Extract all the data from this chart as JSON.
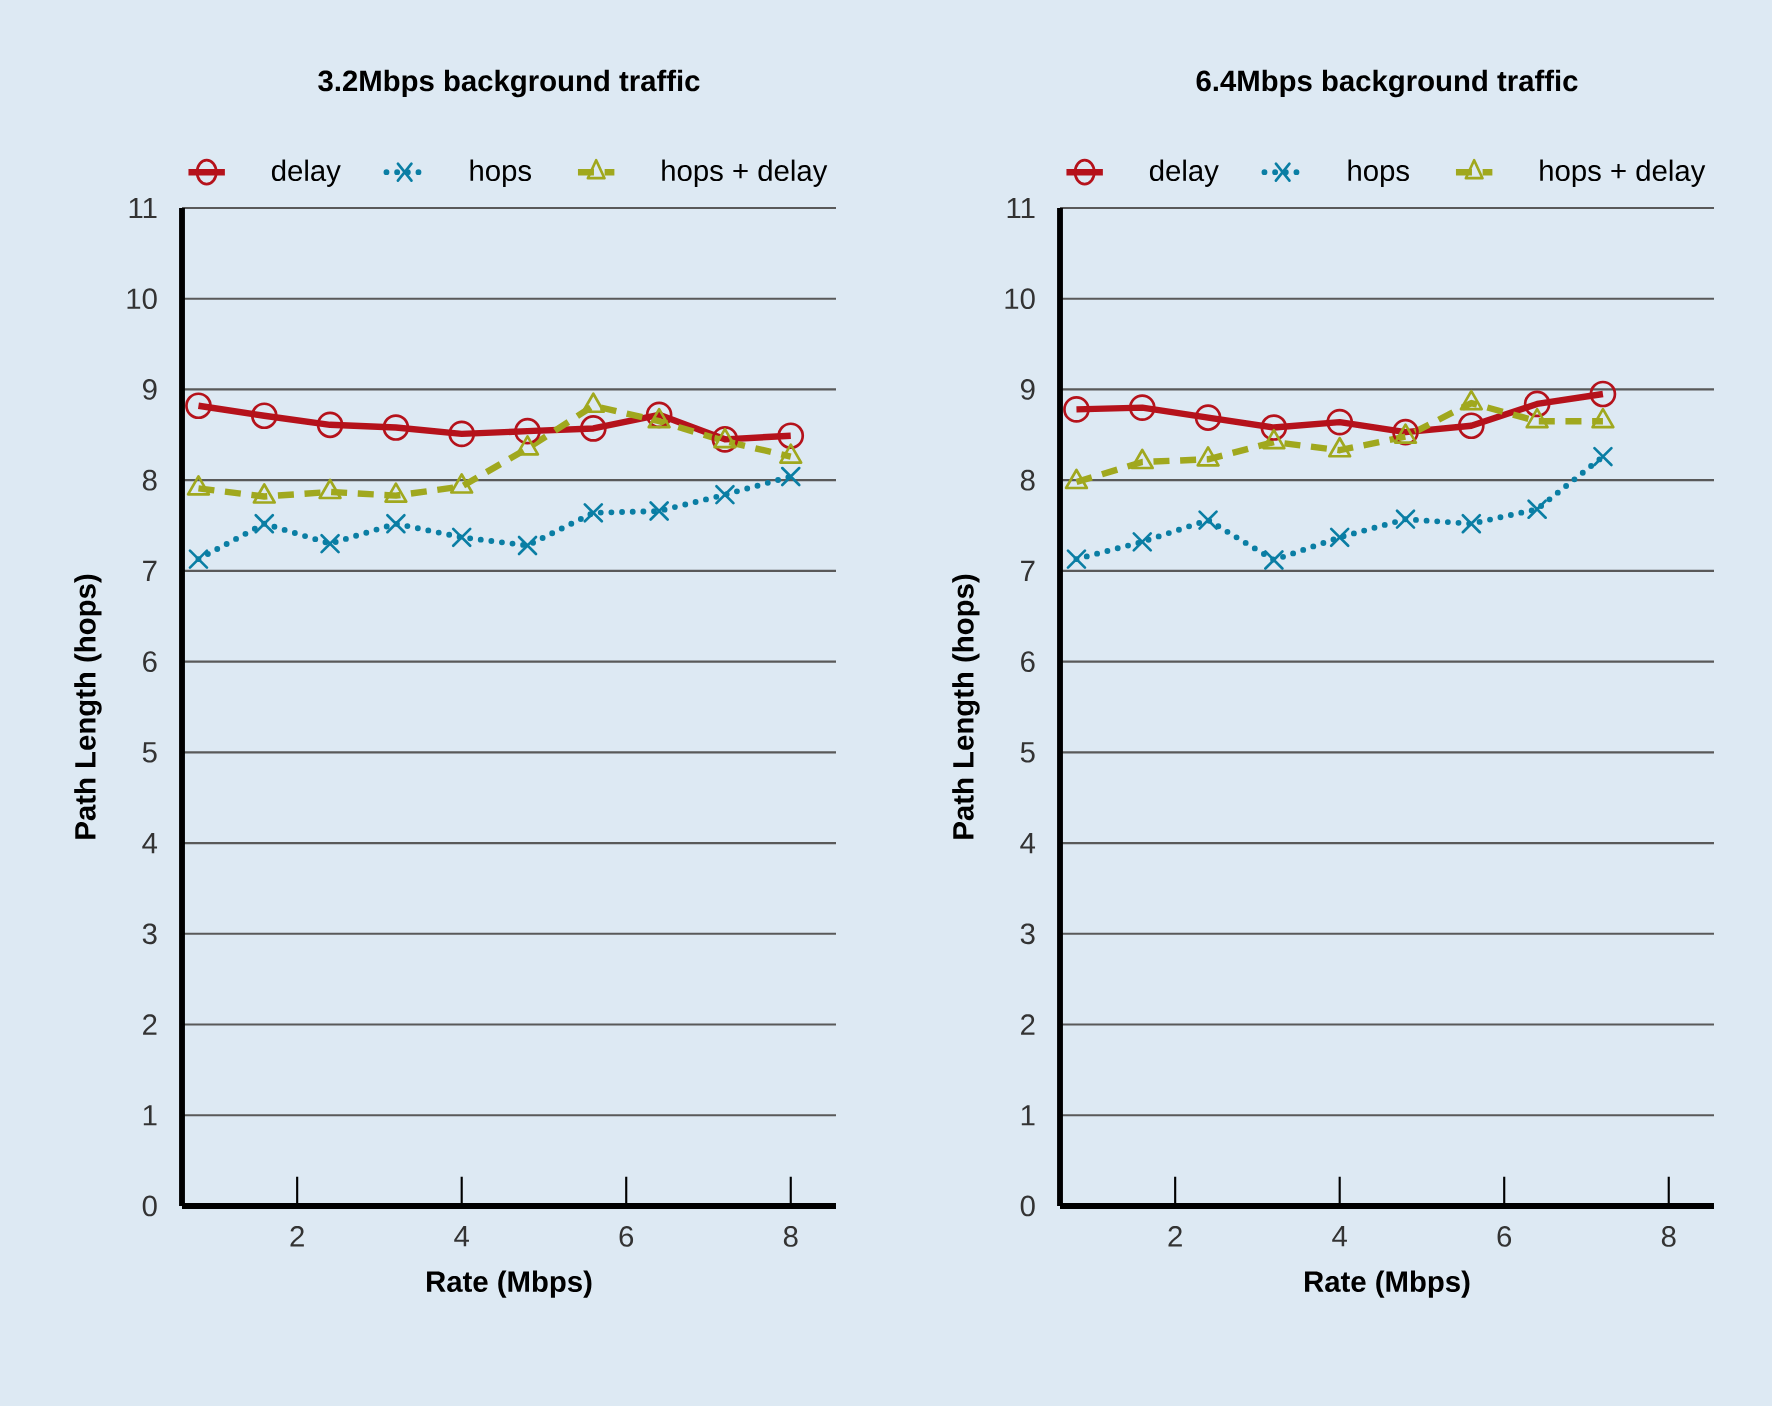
{
  "chart_data": [
    {
      "type": "line",
      "title": "3.2Mbps background traffic",
      "xlabel": "Rate (Mbps)",
      "ylabel": "Path Length (hops)",
      "x": [
        0.8,
        1.6,
        2.4,
        3.2,
        4.0,
        4.8,
        5.6,
        6.4,
        7.2,
        8.0
      ],
      "series": [
        {
          "name": "delay",
          "color": "#b5121b",
          "marker": "circle",
          "line_style": "solid",
          "values": [
            8.82,
            8.71,
            8.61,
            8.58,
            8.51,
            8.54,
            8.57,
            8.72,
            8.45,
            8.49
          ]
        },
        {
          "name": "hops",
          "color": "#0a7ea4",
          "marker": "cross",
          "line_style": "dotted",
          "values": [
            7.13,
            7.52,
            7.3,
            7.52,
            7.37,
            7.28,
            7.64,
            7.66,
            7.84,
            8.04
          ]
        },
        {
          "name": "hops + delay",
          "color": "#a0a81e",
          "marker": "triangle",
          "line_style": "dashed",
          "values": [
            7.91,
            7.82,
            7.87,
            7.83,
            7.93,
            8.35,
            8.82,
            8.65,
            8.43,
            8.26
          ]
        }
      ],
      "xlim": [
        0.6,
        8.55
      ],
      "ylim": [
        0,
        11
      ],
      "xticks": [
        2,
        4,
        6,
        8
      ],
      "yticks": [
        0,
        1,
        2,
        3,
        4,
        5,
        6,
        7,
        8,
        9,
        10,
        11
      ],
      "grid": "y",
      "legend": "top"
    },
    {
      "type": "line",
      "title": "6.4Mbps background traffic",
      "xlabel": "Rate (Mbps)",
      "ylabel": "Path Length (hops)",
      "x": [
        0.8,
        1.6,
        2.4,
        3.2,
        4.0,
        4.8,
        5.6,
        6.4,
        7.2
      ],
      "series": [
        {
          "name": "delay",
          "color": "#b5121b",
          "marker": "circle",
          "line_style": "solid",
          "values": [
            8.78,
            8.8,
            8.69,
            8.58,
            8.64,
            8.53,
            8.6,
            8.84,
            8.95
          ]
        },
        {
          "name": "hops",
          "color": "#0a7ea4",
          "marker": "cross",
          "line_style": "dotted",
          "values": [
            7.13,
            7.32,
            7.56,
            7.12,
            7.37,
            7.57,
            7.52,
            7.68,
            8.26
          ]
        },
        {
          "name": "hops + delay",
          "color": "#a0a81e",
          "marker": "triangle",
          "line_style": "dashed",
          "values": [
            7.98,
            8.2,
            8.23,
            8.42,
            8.33,
            8.48,
            8.85,
            8.65,
            8.65
          ]
        }
      ],
      "xlim": [
        0.6,
        8.55
      ],
      "ylim": [
        0,
        11
      ],
      "xticks": [
        2,
        4,
        6,
        8
      ],
      "yticks": [
        0,
        1,
        2,
        3,
        4,
        5,
        6,
        7,
        8,
        9,
        10,
        11
      ],
      "grid": "y",
      "legend": "top"
    }
  ]
}
